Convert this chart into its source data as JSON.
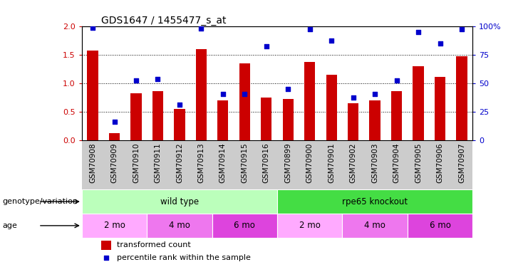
{
  "title": "GDS1647 / 1455477_s_at",
  "samples": [
    "GSM70908",
    "GSM70909",
    "GSM70910",
    "GSM70911",
    "GSM70912",
    "GSM70913",
    "GSM70914",
    "GSM70915",
    "GSM70916",
    "GSM70899",
    "GSM70900",
    "GSM70901",
    "GSM70902",
    "GSM70903",
    "GSM70904",
    "GSM70905",
    "GSM70906",
    "GSM70907"
  ],
  "bar_values": [
    1.58,
    0.13,
    0.83,
    0.87,
    0.55,
    1.6,
    0.7,
    1.35,
    0.75,
    0.73,
    1.38,
    1.15,
    0.65,
    0.7,
    0.87,
    1.3,
    1.12,
    1.48
  ],
  "dot_values": [
    1.98,
    0.32,
    1.05,
    1.08,
    0.63,
    1.97,
    0.82,
    0.82,
    1.65,
    0.9,
    1.95,
    1.75,
    0.75,
    0.82,
    1.05,
    1.9,
    1.7,
    1.95
  ],
  "bar_color": "#cc0000",
  "dot_color": "#0000cc",
  "ylim_left": [
    0,
    2
  ],
  "ylim_right": [
    0,
    100
  ],
  "yticks_left": [
    0,
    0.5,
    1.0,
    1.5,
    2.0
  ],
  "yticks_right": [
    0,
    25,
    50,
    75,
    100
  ],
  "yticklabels_right": [
    "0",
    "25",
    "50",
    "75",
    "100%"
  ],
  "genotype_groups": [
    {
      "label": "wild type",
      "start": 0,
      "end": 9,
      "color": "#bbffbb"
    },
    {
      "label": "rpe65 knockout",
      "start": 9,
      "end": 18,
      "color": "#44dd44"
    }
  ],
  "age_groups": [
    {
      "label": "2 mo",
      "start": 0,
      "end": 3,
      "color": "#ffaaff"
    },
    {
      "label": "4 mo",
      "start": 3,
      "end": 6,
      "color": "#ee77ee"
    },
    {
      "label": "6 mo",
      "start": 6,
      "end": 9,
      "color": "#dd44dd"
    },
    {
      "label": "2 mo",
      "start": 9,
      "end": 12,
      "color": "#ffaaff"
    },
    {
      "label": "4 mo",
      "start": 12,
      "end": 15,
      "color": "#ee77ee"
    },
    {
      "label": "6 mo",
      "start": 15,
      "end": 18,
      "color": "#dd44dd"
    }
  ],
  "genotype_label": "genotype/variation",
  "age_label": "age",
  "legend_bar_label": "transformed count",
  "legend_dot_label": "percentile rank within the sample",
  "bar_width": 0.5,
  "xtick_bg_color": "#cccccc"
}
